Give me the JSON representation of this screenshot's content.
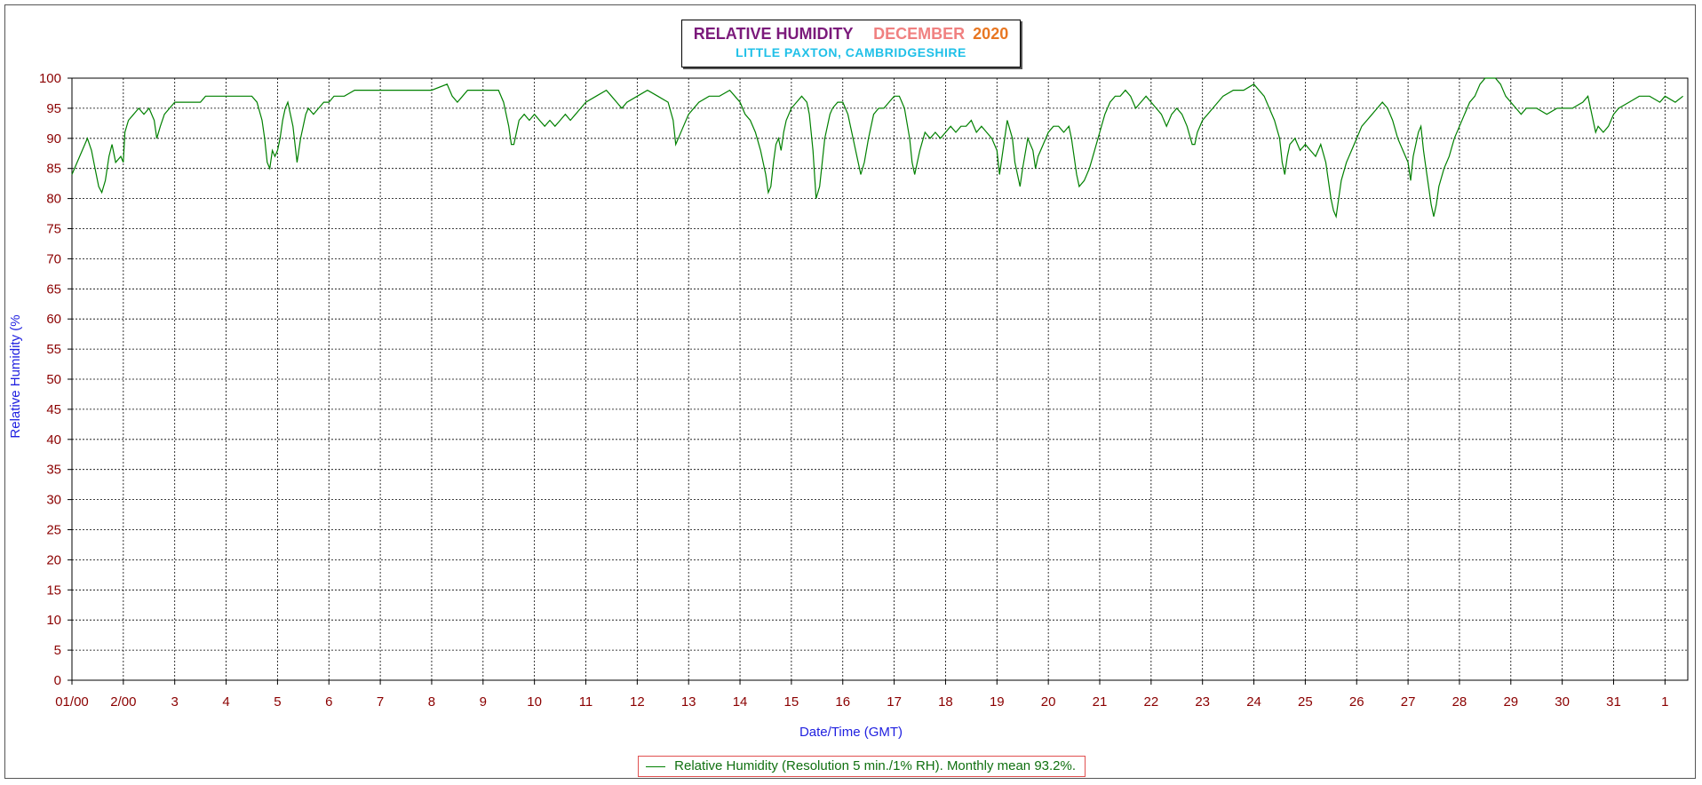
{
  "title": {
    "main": "RELATIVE HUMIDITY",
    "month": "DECEMBER",
    "year": "2020",
    "subtitle": "LITTLE PAXTON, CAMBRIDGESHIRE"
  },
  "colors": {
    "line": "#008000",
    "grid": "#000000",
    "tick_text": "#8B0000",
    "axis_label": "#2020E0",
    "title_main": "#7B1A7B",
    "title_month": "#F08080",
    "title_year": "#E87722",
    "subtitle": "#20C0E8"
  },
  "chart_data": {
    "type": "line",
    "title": "RELATIVE HUMIDITY   DECEMBER 2020",
    "subtitle": "LITTLE PAXTON, CAMBRIDGESHIRE",
    "xlabel": "Date/Time (GMT)",
    "ylabel": "Relative Humidity (%",
    "ylim": [
      0,
      100
    ],
    "xlim": [
      0,
      31.35
    ],
    "grid": true,
    "y_ticks": [
      "0",
      "5",
      "10",
      "15",
      "20",
      "25",
      "30",
      "35",
      "40",
      "45",
      "50",
      "55",
      "60",
      "65",
      "70",
      "75",
      "80",
      "85",
      "90",
      "95",
      "100"
    ],
    "x_tick_labels": [
      "01/00",
      "2/00",
      "3",
      "4",
      "5",
      "6",
      "7",
      "8",
      "9",
      "10",
      "11",
      "12",
      "13",
      "14",
      "15",
      "16",
      "17",
      "18",
      "19",
      "20",
      "21",
      "22",
      "23",
      "24",
      "25",
      "26",
      "27",
      "28",
      "29",
      "30",
      "31",
      "1"
    ],
    "legend": "Relative Humidity (Resolution 5 min./1% RH). Monthly mean 93.2%.",
    "legend_position": "bottom-center",
    "series": [
      {
        "name": "Relative Humidity (Resolution 5 min./1% RH). Monthly mean 93.2%.",
        "x_unit": "days since 01/00",
        "points": [
          [
            0,
            84
          ],
          [
            0.1,
            86
          ],
          [
            0.2,
            88
          ],
          [
            0.3,
            90
          ],
          [
            0.38,
            88
          ],
          [
            0.45,
            85
          ],
          [
            0.52,
            82
          ],
          [
            0.58,
            81
          ],
          [
            0.65,
            83
          ],
          [
            0.72,
            87
          ],
          [
            0.78,
            89
          ],
          [
            0.85,
            86
          ],
          [
            0.95,
            87
          ],
          [
            1.0,
            86
          ],
          [
            1.03,
            91
          ],
          [
            1.1,
            93
          ],
          [
            1.2,
            94
          ],
          [
            1.3,
            95
          ],
          [
            1.4,
            94
          ],
          [
            1.5,
            95
          ],
          [
            1.6,
            93
          ],
          [
            1.65,
            90
          ],
          [
            1.72,
            92
          ],
          [
            1.8,
            94
          ],
          [
            1.9,
            95
          ],
          [
            2.0,
            96
          ],
          [
            2.2,
            96
          ],
          [
            2.5,
            96
          ],
          [
            2.6,
            97
          ],
          [
            3.0,
            97
          ],
          [
            3.3,
            97
          ],
          [
            3.5,
            97
          ],
          [
            3.6,
            96
          ],
          [
            3.7,
            93
          ],
          [
            3.75,
            90
          ],
          [
            3.8,
            86
          ],
          [
            3.85,
            85
          ],
          [
            3.9,
            88
          ],
          [
            3.95,
            87
          ],
          [
            4.0,
            88
          ],
          [
            4.05,
            90
          ],
          [
            4.1,
            93
          ],
          [
            4.15,
            95
          ],
          [
            4.2,
            96
          ],
          [
            4.3,
            92
          ],
          [
            4.38,
            86
          ],
          [
            4.45,
            90
          ],
          [
            4.5,
            92
          ],
          [
            4.55,
            94
          ],
          [
            4.6,
            95
          ],
          [
            4.7,
            94
          ],
          [
            4.8,
            95
          ],
          [
            4.9,
            96
          ],
          [
            5.0,
            96
          ],
          [
            5.1,
            97
          ],
          [
            5.3,
            97
          ],
          [
            5.5,
            98
          ],
          [
            5.8,
            98
          ],
          [
            6.0,
            98
          ],
          [
            6.5,
            98
          ],
          [
            7.0,
            98
          ],
          [
            7.3,
            99
          ],
          [
            7.4,
            97
          ],
          [
            7.5,
            96
          ],
          [
            7.6,
            97
          ],
          [
            7.7,
            98
          ],
          [
            8.0,
            98
          ],
          [
            8.3,
            98
          ],
          [
            8.4,
            96
          ],
          [
            8.5,
            92
          ],
          [
            8.55,
            89
          ],
          [
            8.6,
            89
          ],
          [
            8.65,
            91
          ],
          [
            8.7,
            93
          ],
          [
            8.8,
            94
          ],
          [
            8.9,
            93
          ],
          [
            9.0,
            94
          ],
          [
            9.1,
            93
          ],
          [
            9.2,
            92
          ],
          [
            9.3,
            93
          ],
          [
            9.4,
            92
          ],
          [
            9.5,
            93
          ],
          [
            9.6,
            94
          ],
          [
            9.7,
            93
          ],
          [
            9.8,
            94
          ],
          [
            9.9,
            95
          ],
          [
            10.0,
            96
          ],
          [
            10.2,
            97
          ],
          [
            10.4,
            98
          ],
          [
            10.5,
            97
          ],
          [
            10.6,
            96
          ],
          [
            10.7,
            95
          ],
          [
            10.8,
            96
          ],
          [
            11.0,
            97
          ],
          [
            11.2,
            98
          ],
          [
            11.4,
            97
          ],
          [
            11.6,
            96
          ],
          [
            11.7,
            93
          ],
          [
            11.75,
            89
          ],
          [
            11.8,
            90
          ],
          [
            11.9,
            92
          ],
          [
            12.0,
            94
          ],
          [
            12.2,
            96
          ],
          [
            12.4,
            97
          ],
          [
            12.6,
            97
          ],
          [
            12.8,
            98
          ],
          [
            12.9,
            97
          ],
          [
            13.0,
            96
          ],
          [
            13.1,
            94
          ],
          [
            13.2,
            93
          ],
          [
            13.3,
            91
          ],
          [
            13.4,
            88
          ],
          [
            13.5,
            84
          ],
          [
            13.55,
            81
          ],
          [
            13.6,
            82
          ],
          [
            13.65,
            86
          ],
          [
            13.7,
            89
          ],
          [
            13.75,
            90
          ],
          [
            13.8,
            88
          ],
          [
            13.85,
            91
          ],
          [
            13.9,
            93
          ],
          [
            14.0,
            95
          ],
          [
            14.1,
            96
          ],
          [
            14.2,
            97
          ],
          [
            14.3,
            96
          ],
          [
            14.35,
            94
          ],
          [
            14.42,
            88
          ],
          [
            14.48,
            80
          ],
          [
            14.55,
            82
          ],
          [
            14.6,
            86
          ],
          [
            14.65,
            90
          ],
          [
            14.7,
            92
          ],
          [
            14.75,
            94
          ],
          [
            14.8,
            95
          ],
          [
            14.9,
            96
          ],
          [
            15.0,
            96
          ],
          [
            15.1,
            94
          ],
          [
            15.2,
            90
          ],
          [
            15.3,
            86
          ],
          [
            15.35,
            84
          ],
          [
            15.42,
            86
          ],
          [
            15.5,
            90
          ],
          [
            15.6,
            94
          ],
          [
            15.7,
            95
          ],
          [
            15.8,
            95
          ],
          [
            15.9,
            96
          ],
          [
            16.0,
            97
          ],
          [
            16.1,
            97
          ],
          [
            16.2,
            95
          ],
          [
            16.3,
            90
          ],
          [
            16.35,
            86
          ],
          [
            16.4,
            84
          ],
          [
            16.45,
            86
          ],
          [
            16.5,
            88
          ],
          [
            16.6,
            91
          ],
          [
            16.7,
            90
          ],
          [
            16.8,
            91
          ],
          [
            16.9,
            90
          ],
          [
            17.0,
            91
          ],
          [
            17.1,
            92
          ],
          [
            17.2,
            91
          ],
          [
            17.3,
            92
          ],
          [
            17.4,
            92
          ],
          [
            17.5,
            93
          ],
          [
            17.6,
            91
          ],
          [
            17.7,
            92
          ],
          [
            17.8,
            91
          ],
          [
            17.9,
            90
          ],
          [
            18.0,
            88
          ],
          [
            18.05,
            84
          ],
          [
            18.1,
            87
          ],
          [
            18.2,
            93
          ],
          [
            18.3,
            90
          ],
          [
            18.35,
            86
          ],
          [
            18.4,
            84
          ],
          [
            18.45,
            82
          ],
          [
            18.5,
            85
          ],
          [
            18.6,
            90
          ],
          [
            18.7,
            88
          ],
          [
            18.75,
            85
          ],
          [
            18.8,
            87
          ],
          [
            18.9,
            89
          ],
          [
            19.0,
            91
          ],
          [
            19.1,
            92
          ],
          [
            19.2,
            92
          ],
          [
            19.3,
            91
          ],
          [
            19.4,
            92
          ],
          [
            19.45,
            90
          ],
          [
            19.5,
            87
          ],
          [
            19.55,
            84
          ],
          [
            19.6,
            82
          ],
          [
            19.7,
            83
          ],
          [
            19.8,
            85
          ],
          [
            19.9,
            88
          ],
          [
            20.0,
            91
          ],
          [
            20.1,
            94
          ],
          [
            20.2,
            96
          ],
          [
            20.3,
            97
          ],
          [
            20.4,
            97
          ],
          [
            20.5,
            98
          ],
          [
            20.6,
            97
          ],
          [
            20.7,
            95
          ],
          [
            20.8,
            96
          ],
          [
            20.9,
            97
          ],
          [
            21.0,
            96
          ],
          [
            21.1,
            95
          ],
          [
            21.2,
            94
          ],
          [
            21.3,
            92
          ],
          [
            21.4,
            94
          ],
          [
            21.5,
            95
          ],
          [
            21.6,
            94
          ],
          [
            21.7,
            92
          ],
          [
            21.8,
            89
          ],
          [
            21.85,
            89
          ],
          [
            21.9,
            91
          ],
          [
            22.0,
            93
          ],
          [
            22.2,
            95
          ],
          [
            22.4,
            97
          ],
          [
            22.6,
            98
          ],
          [
            22.8,
            98
          ],
          [
            23.0,
            99
          ],
          [
            23.1,
            98
          ],
          [
            23.2,
            97
          ],
          [
            23.3,
            95
          ],
          [
            23.4,
            93
          ],
          [
            23.5,
            90
          ],
          [
            23.55,
            86
          ],
          [
            23.6,
            84
          ],
          [
            23.65,
            87
          ],
          [
            23.7,
            89
          ],
          [
            23.8,
            90
          ],
          [
            23.9,
            88
          ],
          [
            24.0,
            89
          ],
          [
            24.1,
            88
          ],
          [
            24.2,
            87
          ],
          [
            24.3,
            89
          ],
          [
            24.4,
            86
          ],
          [
            24.45,
            83
          ],
          [
            24.5,
            80
          ],
          [
            24.55,
            78
          ],
          [
            24.6,
            77
          ],
          [
            24.65,
            80
          ],
          [
            24.7,
            83
          ],
          [
            24.8,
            86
          ],
          [
            24.9,
            88
          ],
          [
            25.0,
            90
          ],
          [
            25.1,
            92
          ],
          [
            25.2,
            93
          ],
          [
            25.3,
            94
          ],
          [
            25.4,
            95
          ],
          [
            25.5,
            96
          ],
          [
            25.6,
            95
          ],
          [
            25.7,
            93
          ],
          [
            25.8,
            90
          ],
          [
            25.9,
            88
          ],
          [
            26.0,
            86
          ],
          [
            26.05,
            83
          ],
          [
            26.1,
            87
          ],
          [
            26.2,
            91
          ],
          [
            26.25,
            92
          ],
          [
            26.3,
            88
          ],
          [
            26.35,
            85
          ],
          [
            26.4,
            82
          ],
          [
            26.45,
            79
          ],
          [
            26.5,
            77
          ],
          [
            26.55,
            79
          ],
          [
            26.6,
            82
          ],
          [
            26.7,
            85
          ],
          [
            26.8,
            87
          ],
          [
            26.9,
            90
          ],
          [
            27.0,
            92
          ],
          [
            27.1,
            94
          ],
          [
            27.2,
            96
          ],
          [
            27.3,
            97
          ],
          [
            27.4,
            99
          ],
          [
            27.5,
            100
          ],
          [
            27.7,
            100
          ],
          [
            27.8,
            99
          ],
          [
            27.9,
            97
          ],
          [
            28.0,
            96
          ],
          [
            28.1,
            95
          ],
          [
            28.2,
            94
          ],
          [
            28.3,
            95
          ],
          [
            28.5,
            95
          ],
          [
            28.7,
            94
          ],
          [
            28.9,
            95
          ],
          [
            29.0,
            95
          ],
          [
            29.2,
            95
          ],
          [
            29.4,
            96
          ],
          [
            29.5,
            97
          ],
          [
            29.55,
            95
          ],
          [
            29.6,
            93
          ],
          [
            29.65,
            91
          ],
          [
            29.7,
            92
          ],
          [
            29.8,
            91
          ],
          [
            29.9,
            92
          ],
          [
            30.0,
            94
          ],
          [
            30.1,
            95
          ],
          [
            30.3,
            96
          ],
          [
            30.5,
            97
          ],
          [
            30.7,
            97
          ],
          [
            30.9,
            96
          ],
          [
            31.0,
            97
          ],
          [
            31.2,
            96
          ],
          [
            31.35,
            97
          ]
        ]
      }
    ]
  }
}
